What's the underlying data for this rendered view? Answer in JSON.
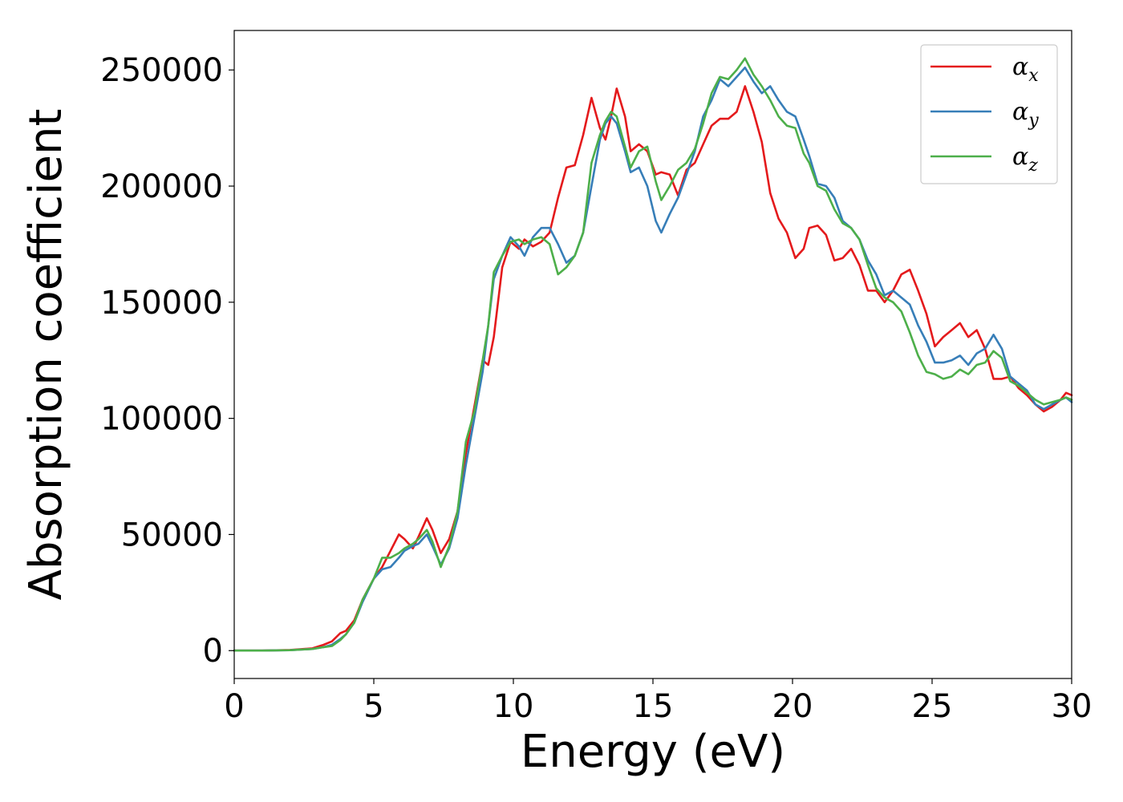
{
  "chart_data": {
    "type": "line",
    "xlabel": "Energy (eV)",
    "ylabel": "Absorption coefficient",
    "xlim": [
      0,
      30
    ],
    "ylim": [
      -12000,
      267000
    ],
    "x_ticks": [
      0,
      5,
      10,
      15,
      20,
      25,
      30
    ],
    "y_ticks": [
      0,
      50000,
      100000,
      150000,
      200000,
      250000
    ],
    "x_tick_labels": [
      "0",
      "5",
      "10",
      "15",
      "20",
      "25",
      "30"
    ],
    "y_tick_labels": [
      "0",
      "50000",
      "100000",
      "150000",
      "200000",
      "250000"
    ],
    "grid": false,
    "legend_position": "top-right",
    "series": [
      {
        "name": "α_x",
        "symbol": "α",
        "subscript": "x",
        "color": "#e41a1c",
        "x": [
          0,
          1,
          2,
          2.8,
          3.2,
          3.5,
          3.8,
          4.0,
          4.3,
          4.6,
          5.0,
          5.3,
          5.6,
          5.9,
          6.1,
          6.4,
          6.6,
          6.9,
          7.1,
          7.4,
          7.7,
          8.0,
          8.3,
          8.6,
          8.9,
          9.1,
          9.3,
          9.6,
          9.9,
          10.2,
          10.4,
          10.7,
          11.0,
          11.3,
          11.6,
          11.9,
          12.2,
          12.5,
          12.8,
          13.1,
          13.3,
          13.5,
          13.7,
          14.0,
          14.2,
          14.5,
          14.8,
          15.1,
          15.3,
          15.6,
          15.9,
          16.2,
          16.5,
          16.8,
          17.1,
          17.4,
          17.7,
          18.0,
          18.3,
          18.6,
          18.9,
          19.2,
          19.5,
          19.8,
          20.1,
          20.4,
          20.6,
          20.9,
          21.2,
          21.5,
          21.8,
          22.1,
          22.4,
          22.7,
          23.0,
          23.3,
          23.6,
          23.9,
          24.2,
          24.5,
          24.8,
          25.1,
          25.4,
          25.7,
          26.0,
          26.3,
          26.6,
          26.9,
          27.2,
          27.5,
          27.8,
          28.1,
          28.4,
          28.7,
          29.0,
          29.3,
          29.6,
          29.8,
          30.0
        ],
        "values": [
          0,
          0,
          300,
          1000,
          2500,
          4000,
          7500,
          8500,
          13000,
          22000,
          31000,
          36000,
          43000,
          50000,
          48000,
          44000,
          49000,
          57000,
          52000,
          42000,
          48000,
          60000,
          85000,
          105000,
          125000,
          123000,
          135000,
          165000,
          176000,
          173000,
          177000,
          174000,
          176000,
          180000,
          195000,
          208000,
          209000,
          222000,
          238000,
          225000,
          220000,
          230000,
          242000,
          230000,
          215000,
          218000,
          215000,
          205000,
          206000,
          205000,
          196000,
          207000,
          210000,
          218000,
          226000,
          229000,
          229000,
          232000,
          243000,
          232000,
          219000,
          197000,
          186000,
          180000,
          169000,
          173000,
          182000,
          183000,
          179000,
          168000,
          169000,
          173000,
          166000,
          155000,
          155000,
          150000,
          155000,
          162000,
          164000,
          155000,
          145000,
          131000,
          135000,
          138000,
          141000,
          135000,
          138000,
          130000,
          117000,
          117000,
          118000,
          113000,
          110000,
          106000,
          103000,
          105000,
          108000,
          111000,
          110000
        ]
      },
      {
        "name": "α_y",
        "symbol": "α",
        "subscript": "y",
        "color": "#377eb8",
        "x": [
          0,
          1,
          2,
          2.8,
          3.2,
          3.5,
          3.8,
          4.0,
          4.3,
          4.6,
          5.0,
          5.3,
          5.6,
          5.9,
          6.1,
          6.4,
          6.6,
          6.9,
          7.1,
          7.4,
          7.7,
          8.0,
          8.3,
          8.6,
          8.9,
          9.1,
          9.3,
          9.6,
          9.9,
          10.2,
          10.4,
          10.7,
          11.0,
          11.3,
          11.6,
          11.9,
          12.2,
          12.5,
          12.8,
          13.1,
          13.3,
          13.5,
          13.7,
          14.0,
          14.2,
          14.5,
          14.8,
          15.1,
          15.3,
          15.6,
          15.9,
          16.2,
          16.5,
          16.8,
          17.1,
          17.4,
          17.7,
          18.0,
          18.3,
          18.6,
          18.9,
          19.2,
          19.5,
          19.8,
          20.1,
          20.4,
          20.6,
          20.9,
          21.2,
          21.5,
          21.8,
          22.1,
          22.4,
          22.7,
          23.0,
          23.3,
          23.6,
          23.9,
          24.2,
          24.5,
          24.8,
          25.1,
          25.4,
          25.7,
          26.0,
          26.3,
          26.6,
          26.9,
          27.2,
          27.5,
          27.8,
          28.1,
          28.4,
          28.7,
          29.0,
          29.3,
          29.6,
          29.8,
          30.0
        ],
        "values": [
          0,
          0,
          200,
          700,
          1500,
          2500,
          5000,
          7000,
          12000,
          21000,
          31000,
          35000,
          36000,
          40000,
          43000,
          45000,
          46000,
          50000,
          45000,
          37000,
          44000,
          57000,
          80000,
          100000,
          120000,
          140000,
          160000,
          170000,
          178000,
          174000,
          170000,
          178000,
          182000,
          182000,
          175000,
          167000,
          170000,
          180000,
          200000,
          220000,
          227000,
          230000,
          227000,
          215000,
          206000,
          208000,
          200000,
          185000,
          180000,
          188000,
          195000,
          205000,
          215000,
          230000,
          237000,
          246000,
          243000,
          247000,
          251000,
          245000,
          240000,
          243000,
          237000,
          232000,
          230000,
          220000,
          213000,
          201000,
          200000,
          195000,
          185000,
          182000,
          177000,
          168000,
          162000,
          153000,
          155000,
          152000,
          149000,
          140000,
          133000,
          124000,
          124000,
          125000,
          127000,
          123000,
          128000,
          130000,
          136000,
          130000,
          118000,
          115000,
          112000,
          106000,
          104000,
          106000,
          108000,
          109000,
          107000
        ]
      },
      {
        "name": "α_z",
        "symbol": "α",
        "subscript": "z",
        "color": "#4daf4a",
        "x": [
          0,
          1,
          2,
          2.8,
          3.2,
          3.5,
          3.8,
          4.0,
          4.3,
          4.6,
          5.0,
          5.3,
          5.6,
          5.9,
          6.1,
          6.4,
          6.6,
          6.9,
          7.1,
          7.4,
          7.7,
          8.0,
          8.3,
          8.6,
          8.9,
          9.1,
          9.3,
          9.6,
          9.9,
          10.2,
          10.4,
          10.7,
          11.0,
          11.3,
          11.6,
          11.9,
          12.2,
          12.5,
          12.8,
          13.1,
          13.3,
          13.5,
          13.7,
          14.0,
          14.2,
          14.5,
          14.8,
          15.1,
          15.3,
          15.6,
          15.9,
          16.2,
          16.5,
          16.8,
          17.1,
          17.4,
          17.7,
          18.0,
          18.3,
          18.6,
          18.9,
          19.2,
          19.5,
          19.8,
          20.1,
          20.4,
          20.6,
          20.9,
          21.2,
          21.5,
          21.8,
          22.1,
          22.4,
          22.7,
          23.0,
          23.3,
          23.6,
          23.9,
          24.2,
          24.5,
          24.8,
          25.1,
          25.4,
          25.7,
          26.0,
          26.3,
          26.6,
          26.9,
          27.2,
          27.5,
          27.8,
          28.1,
          28.4,
          28.7,
          29.0,
          29.3,
          29.6,
          29.8,
          30.0
        ],
        "values": [
          0,
          0,
          200,
          700,
          1500,
          2000,
          4500,
          7000,
          12000,
          22000,
          31000,
          40000,
          40000,
          42000,
          44000,
          46000,
          48000,
          52000,
          47000,
          36000,
          45000,
          60000,
          90000,
          103000,
          125000,
          140000,
          163000,
          170000,
          176000,
          177000,
          175000,
          177000,
          178000,
          175000,
          162000,
          165000,
          170000,
          180000,
          210000,
          222000,
          228000,
          232000,
          230000,
          217000,
          208000,
          215000,
          217000,
          202000,
          194000,
          200000,
          207000,
          210000,
          216000,
          227000,
          240000,
          247000,
          246000,
          250000,
          255000,
          248000,
          243000,
          237000,
          230000,
          226000,
          225000,
          214000,
          210000,
          200000,
          198000,
          190000,
          184000,
          182000,
          177000,
          166000,
          156000,
          152000,
          150000,
          146000,
          137000,
          127000,
          120000,
          119000,
          117000,
          118000,
          121000,
          119000,
          123000,
          124000,
          129000,
          126000,
          116000,
          114000,
          111000,
          108000,
          106000,
          107000,
          108000,
          109000,
          108000
        ]
      }
    ]
  }
}
